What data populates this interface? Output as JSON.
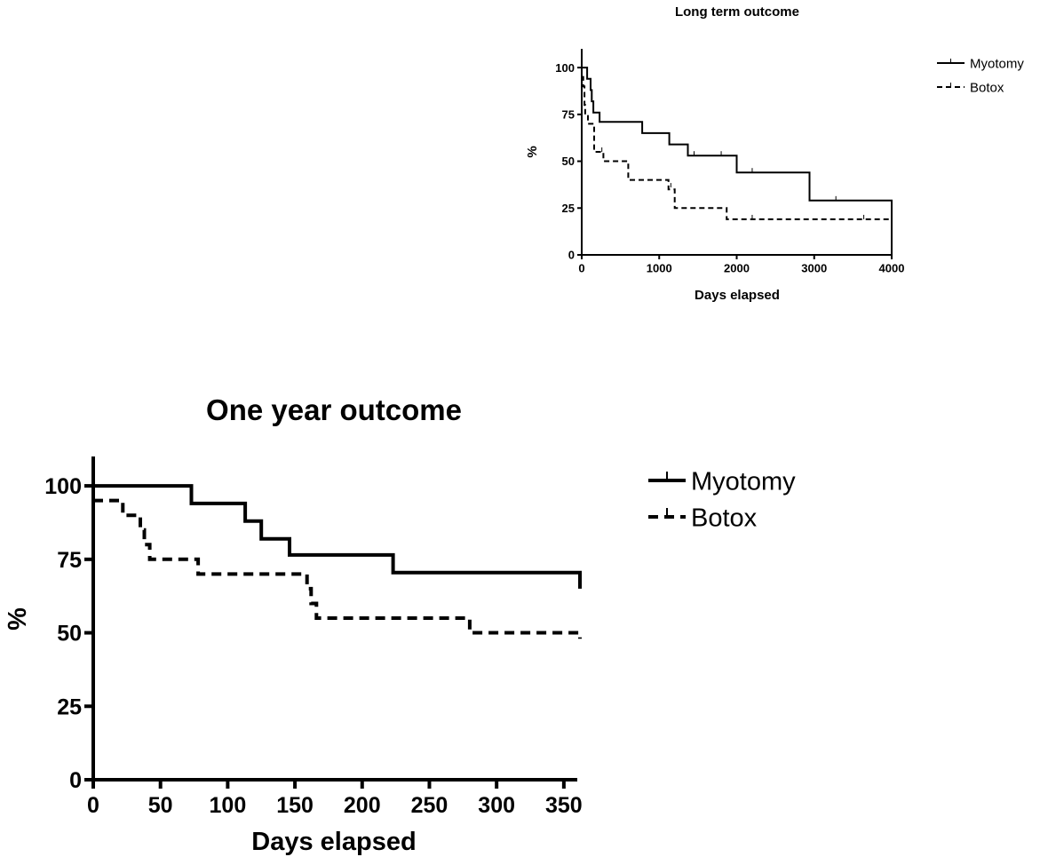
{
  "chart_data": [
    {
      "type": "line",
      "subtype": "kaplan-meier",
      "title": "Long term outcome",
      "xlabel": "Days elapsed",
      "ylabel": "%",
      "xlim": [
        0,
        4000
      ],
      "ylim": [
        0,
        110
      ],
      "xticks": [
        0,
        1000,
        2000,
        3000,
        4000
      ],
      "yticks": [
        0,
        25,
        50,
        75,
        100
      ],
      "legend_position": "right",
      "series": [
        {
          "name": "Myotomy",
          "line_style": "solid",
          "steps": [
            [
              0,
              100
            ],
            [
              70,
              100
            ],
            [
              70,
              94
            ],
            [
              115,
              94
            ],
            [
              115,
              88
            ],
            [
              130,
              88
            ],
            [
              130,
              82
            ],
            [
              150,
              82
            ],
            [
              150,
              76
            ],
            [
              230,
              76
            ],
            [
              230,
              71
            ],
            [
              780,
              71
            ],
            [
              780,
              65
            ],
            [
              1130,
              65
            ],
            [
              1130,
              59
            ],
            [
              1370,
              59
            ],
            [
              1370,
              53
            ],
            [
              2000,
              53
            ],
            [
              2000,
              44
            ],
            [
              2940,
              44
            ],
            [
              2940,
              29
            ],
            [
              4000,
              29
            ],
            [
              4000,
              0
            ]
          ],
          "censored": [
            [
              1450,
              53
            ],
            [
              1800,
              53
            ],
            [
              2200,
              44
            ],
            [
              3280,
              29
            ]
          ]
        },
        {
          "name": "Botox",
          "line_style": "dashed",
          "steps": [
            [
              0,
              95
            ],
            [
              20,
              95
            ],
            [
              20,
              90
            ],
            [
              35,
              90
            ],
            [
              35,
              80
            ],
            [
              45,
              80
            ],
            [
              45,
              75
            ],
            [
              80,
              75
            ],
            [
              80,
              70
            ],
            [
              160,
              70
            ],
            [
              160,
              55
            ],
            [
              280,
              55
            ],
            [
              280,
              50
            ],
            [
              600,
              50
            ],
            [
              600,
              40
            ],
            [
              1120,
              40
            ],
            [
              1120,
              35
            ],
            [
              1200,
              35
            ],
            [
              1200,
              25
            ],
            [
              1870,
              25
            ],
            [
              1870,
              19
            ],
            [
              4000,
              19
            ],
            [
              4000,
              0
            ]
          ],
          "censored": [
            [
              260,
              55
            ],
            [
              1150,
              36
            ],
            [
              2200,
              19
            ],
            [
              3640,
              19
            ]
          ]
        }
      ]
    },
    {
      "type": "line",
      "subtype": "kaplan-meier",
      "title": "One year outcome",
      "xlabel": "Days elapsed",
      "ylabel": "%",
      "xlim": [
        0,
        360
      ],
      "ylim": [
        0,
        110
      ],
      "xticks": [
        0,
        50,
        100,
        150,
        200,
        250,
        300,
        350
      ],
      "yticks": [
        0,
        25,
        50,
        75,
        100
      ],
      "legend_position": "right",
      "series": [
        {
          "name": "Myotomy",
          "line_style": "solid",
          "steps": [
            [
              0,
              100
            ],
            [
              73,
              100
            ],
            [
              73,
              94
            ],
            [
              113,
              94
            ],
            [
              113,
              88
            ],
            [
              125,
              88
            ],
            [
              125,
              82
            ],
            [
              146,
              82
            ],
            [
              146,
              76.5
            ],
            [
              223,
              76.5
            ],
            [
              223,
              70.5
            ],
            [
              362,
              70.5
            ],
            [
              362,
              65
            ]
          ],
          "censored": []
        },
        {
          "name": "Botox",
          "line_style": "dashed",
          "steps": [
            [
              0,
              95
            ],
            [
              22,
              95
            ],
            [
              22,
              90
            ],
            [
              35,
              90
            ],
            [
              35,
              85
            ],
            [
              38,
              85
            ],
            [
              38,
              80
            ],
            [
              42,
              80
            ],
            [
              42,
              75
            ],
            [
              78,
              75
            ],
            [
              78,
              70
            ],
            [
              159,
              70
            ],
            [
              159,
              65
            ],
            [
              162,
              65
            ],
            [
              162,
              60
            ],
            [
              166,
              60
            ],
            [
              166,
              55
            ],
            [
              280,
              55
            ],
            [
              280,
              50
            ],
            [
              362,
              50
            ],
            [
              362,
              48
            ]
          ],
          "censored": []
        }
      ]
    }
  ]
}
